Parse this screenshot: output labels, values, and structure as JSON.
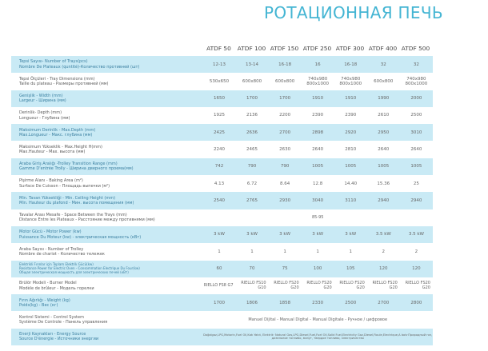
{
  "title": "РОТАЦИОННАЯ ПЕЧЬ",
  "models": [
    "ATDF 50",
    "ATDF 100",
    "ATDF 150",
    "ATDF 250",
    "ATDF 300",
    "ATDF 400",
    "ATDF 500"
  ],
  "rows": [
    {
      "label1": "Tepsi Sayısı- Number of Trays(pcs)",
      "label2": "Nombre De Plateaux (quntité)-Количество противней (шт)",
      "values": [
        "12-13",
        "13-14",
        "16-18",
        "16",
        "16-18",
        "32",
        "32"
      ]
    },
    {
      "label1": "Tepsi Ölçüleri - Tray Dimensions (mm)",
      "label2": "Taille du plateau - Размеры противней (мм)",
      "values": [
        "530x650",
        "600x800",
        "600x800",
        "740x980 800x1000",
        "740x980 800x1000",
        "600x800",
        "740x980 800x1000"
      ]
    },
    {
      "label1": "Genişlik - Width (mm)",
      "label2": "Largeur - Ширина (мм)",
      "values": [
        "1650",
        "1700",
        "1700",
        "1910",
        "1910",
        "1990",
        "2000"
      ]
    },
    {
      "label1": "Derinlik- Depth (mm)",
      "label2": "Longueur - Глубина (мм)",
      "values": [
        "1925",
        "2136",
        "2200",
        "2390",
        "2390",
        "2610",
        "2500"
      ]
    },
    {
      "label1": "Maksimum Derinlik - Max.Depth (mm)",
      "label2": "Max.Longueur - Макс. глубина (мм)",
      "values": [
        "2425",
        "2636",
        "2700",
        "2898",
        "2920",
        "2950",
        "3010"
      ]
    },
    {
      "label1": "Maksimum Yükseklik - Max.Height H(mm)",
      "label2": "Max.Hauteur - Max. высота (мм)",
      "values": [
        "2240",
        "2465",
        "2630",
        "2640",
        "2810",
        "2640",
        "2640"
      ]
    },
    {
      "label1": "Araba Giriş Aralığı -Trolley Transition Range (mm)",
      "label2": "Gamme D'entrée Trolly - Ширина дверного проема(мм)",
      "values": [
        "742",
        "790",
        "790",
        "1005",
        "1005",
        "1005",
        "1005"
      ]
    },
    {
      "label1": "Pişirme Alanı - Baking Area (m²)",
      "label2": "Surface De Cuisson - Площадь выпечки (м²)",
      "values": [
        "4.13",
        "6.72",
        "8.64",
        "12.8",
        "14.40",
        "15.36",
        "25"
      ]
    },
    {
      "label1": "Min. Tavan Yüksekliği - Min. Ceiling Height (mm)",
      "label2": "Min. Hauteur du plafond - Мин. высота помещения (мм)",
      "values": [
        "2540",
        "2765",
        "2930",
        "3040",
        "3110",
        "2940",
        "2940"
      ]
    },
    {
      "label1": "Tavalar Arası Mesafe - Space Between the Trays (mm)",
      "label2": "Distance Entre les Plateaux - Расстояние между противнями (мм)",
      "span": "85-95"
    },
    {
      "label1": "Motor Gücü - Motor Power (kw)",
      "label2": "Puissance Du Moteur (kw) - электрическая мощность (кВт)",
      "values": [
        "3 kW",
        "3 kW",
        "3 kW",
        "3 kW",
        "3 kW",
        "3.5 kW",
        "3.5 kW"
      ]
    },
    {
      "label1": "Araba Sayısı - Number of Trolley",
      "label2": "Nombre de chariot - Количество тележек",
      "values": [
        "1",
        "1",
        "1",
        "1",
        "1",
        "2",
        "2"
      ]
    },
    {
      "label1": "Elektrikli Fırınlar için Toplam Elektrik Gücü(kw)",
      "label2": "Resistance Power for Electric Oven - Consommation Electrique Du Four(kw)",
      "label3": "Общая электрическая мощность для электрических печей (кВт)",
      "values": [
        "60",
        "70",
        "75",
        "100",
        "105",
        "120",
        "120"
      ]
    },
    {
      "label1": "Brülör Modeli - Burner Model",
      "label2": "Modèle de brûleur - Модель горелки",
      "values": [
        "RIELLO FS8 G7",
        "RIELLO FS10 G10",
        "RIELLO FS20 G20",
        "RIELLO FS20 G20",
        "RIELLO FS20 G20",
        "RIELLO FS20 G20",
        "RIELLO FS20 G20"
      ]
    },
    {
      "label1": "Fırın Ağırlığı - Weight (kg)",
      "label2": "Poids(kg) - Вес (кг)",
      "values": [
        "1700",
        "1806",
        "1858",
        "2330",
        "2500",
        "2700",
        "2800"
      ]
    },
    {
      "label1": "Kontrol Sistemi - Control System",
      "label2": "Système De Controle - Панель управления",
      "span": "Manuel Dijital - Manual Digital - Manual Digitale - Ручное / цифровое"
    },
    {
      "label1": "Enerji Kaynakları - Energy Source",
      "label2": "Source D'énergie - Источники энергии",
      "span": "Doğalgaz,LPG,Motorin,Fuel Oil,Katı Yakıt, Elektrik· Natural Gas,LPG,Diesel,Fuel,Fuel Oil,Solid Fuel,Electricity Gaz,Diesel,Fioule,Electrique,A bois·Природный газ, дизельное топливо, мазут, твердое топливо, электричество"
    }
  ]
}
